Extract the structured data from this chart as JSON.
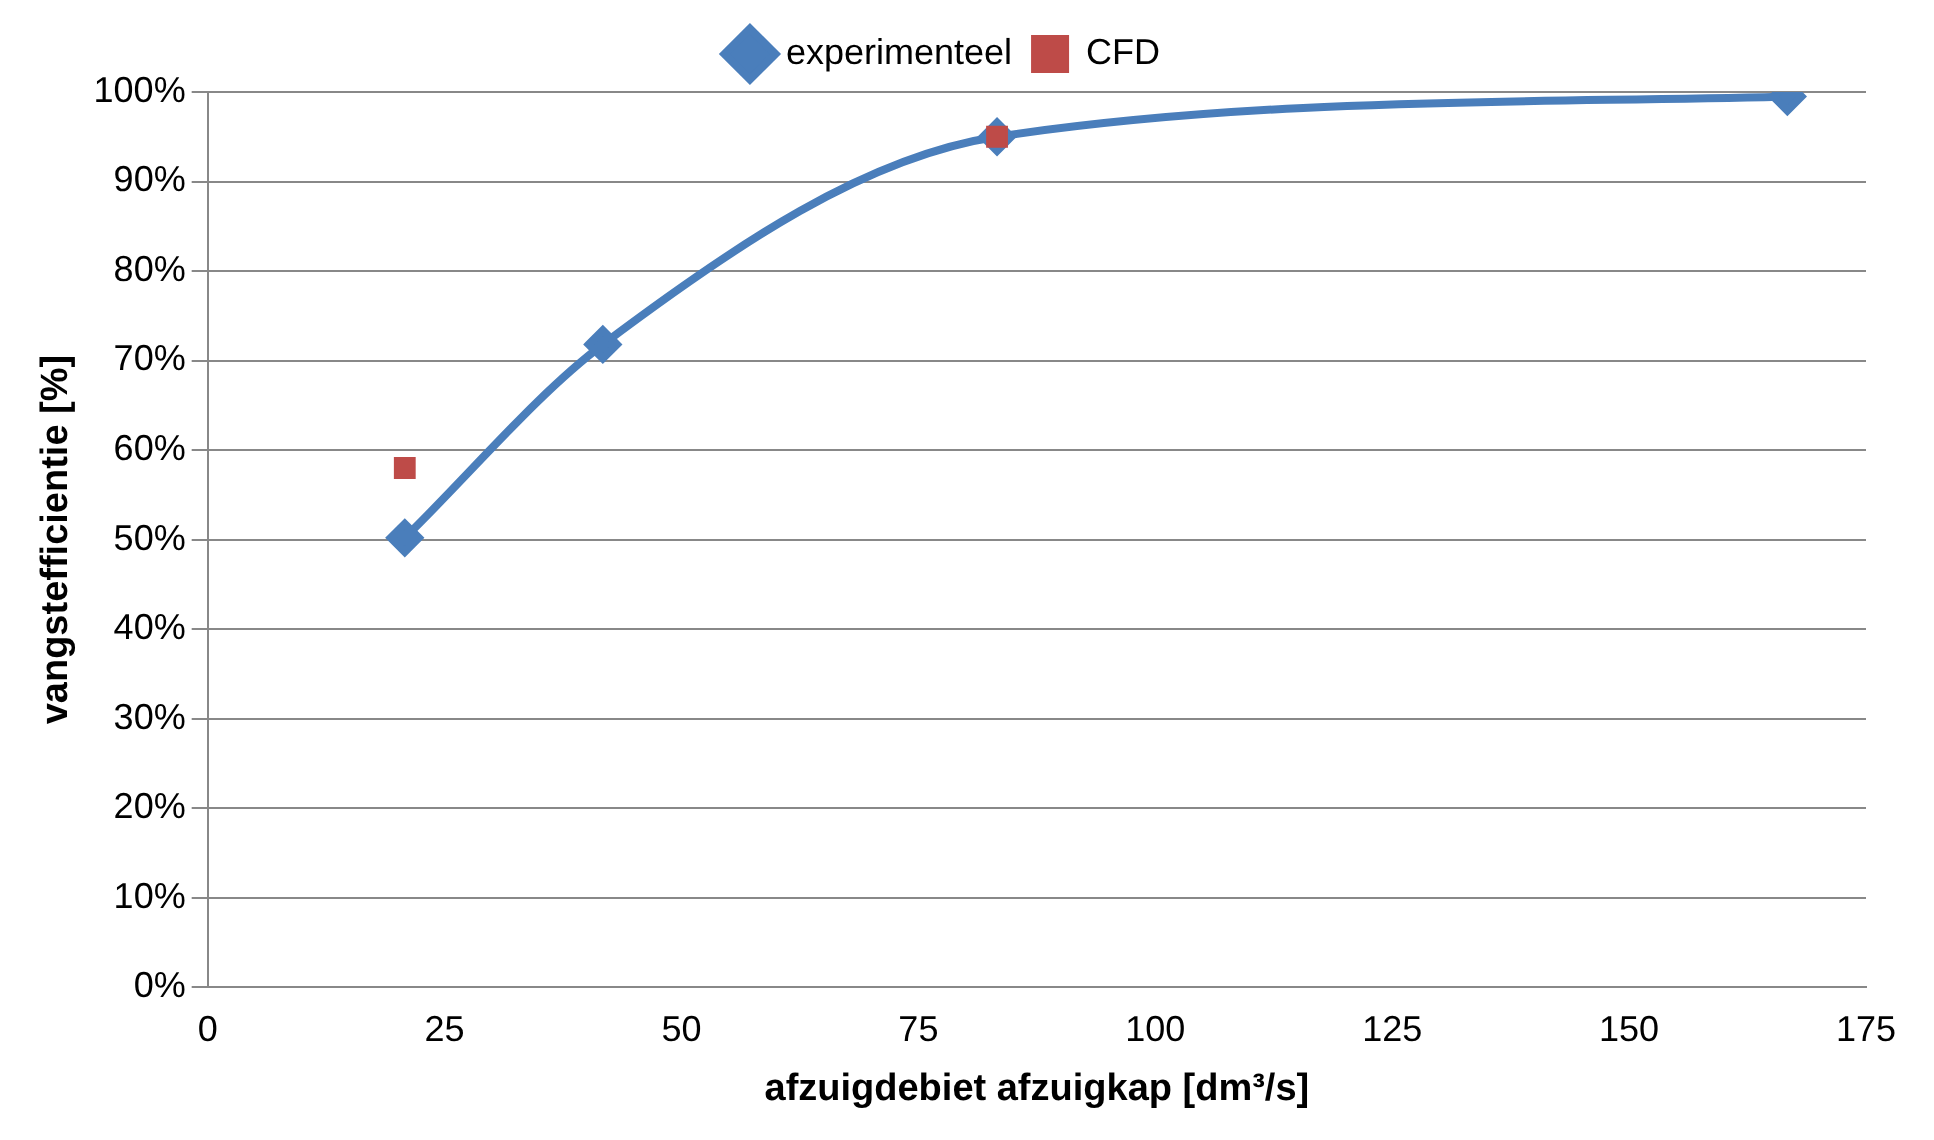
{
  "chart_data": {
    "type": "line",
    "xlabel": "afzuigdebiet afzuigkap [dm³/s]",
    "ylabel": "vangstefficientie [%]",
    "xlim": [
      0,
      175
    ],
    "xticks": [
      0,
      25,
      50,
      75,
      100,
      125,
      150,
      175
    ],
    "ylim": [
      0,
      100
    ],
    "yticks": [
      {
        "value": 0,
        "label": "0%"
      },
      {
        "value": 10,
        "label": "10%"
      },
      {
        "value": 20,
        "label": "20%"
      },
      {
        "value": 30,
        "label": "30%"
      },
      {
        "value": 40,
        "label": "40%"
      },
      {
        "value": 50,
        "label": "50%"
      },
      {
        "value": 60,
        "label": "60%"
      },
      {
        "value": 70,
        "label": "70%"
      },
      {
        "value": 80,
        "label": "80%"
      },
      {
        "value": 90,
        "label": "90%"
      },
      {
        "value": 100,
        "label": "100%"
      }
    ],
    "grid": "y",
    "legend": "top",
    "series": [
      {
        "name": "experimenteel",
        "type": "line",
        "color": "#4a7ebb",
        "marker": "diamond",
        "x": [
          20.8,
          41.7,
          83.3,
          166.7
        ],
        "values": [
          50.2,
          71.8,
          95,
          99.5
        ]
      },
      {
        "name": "CFD",
        "type": "scatter",
        "color": "#be4b48",
        "marker": "square",
        "x": [
          20.8,
          83.3
        ],
        "values": [
          58,
          95
        ]
      }
    ]
  }
}
